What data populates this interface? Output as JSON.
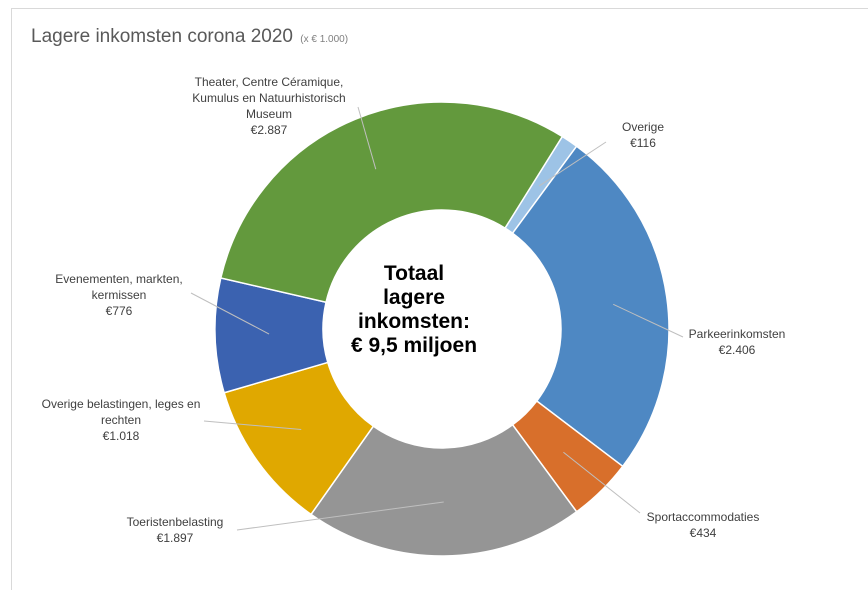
{
  "chart_data": {
    "type": "pie",
    "title": "Lagere inkomsten corona 2020",
    "subtitle": "(x € 1.000)",
    "center_text": [
      "Totaal",
      "lagere",
      "inkomsten:",
      "€ 9,5 miljoen"
    ],
    "slices": [
      {
        "name": "Overige",
        "value": 116,
        "label": "€116",
        "color": "#9dc3e6"
      },
      {
        "name": "Parkeerinkomsten",
        "value": 2406,
        "label": "€2.406",
        "color": "#4e88c3"
      },
      {
        "name": "Sportaccommodaties",
        "value": 434,
        "label": "€434",
        "color": "#d86f2b"
      },
      {
        "name": "Toeristenbelasting",
        "value": 1897,
        "label": "€1.897",
        "color": "#959595"
      },
      {
        "name": "Overige belastingen, leges en rechten",
        "value": 1018,
        "label": "€1.018",
        "color": "#e0a800"
      },
      {
        "name": "Evenementen, markten, kermissen",
        "value": 776,
        "label": "€776",
        "color": "#3b62b0"
      },
      {
        "name": "Theater, Centre Céramique, Kumulus en Natuurhistorisch Museum",
        "value": 2887,
        "label": "€2.887",
        "color": "#63993d"
      }
    ]
  }
}
